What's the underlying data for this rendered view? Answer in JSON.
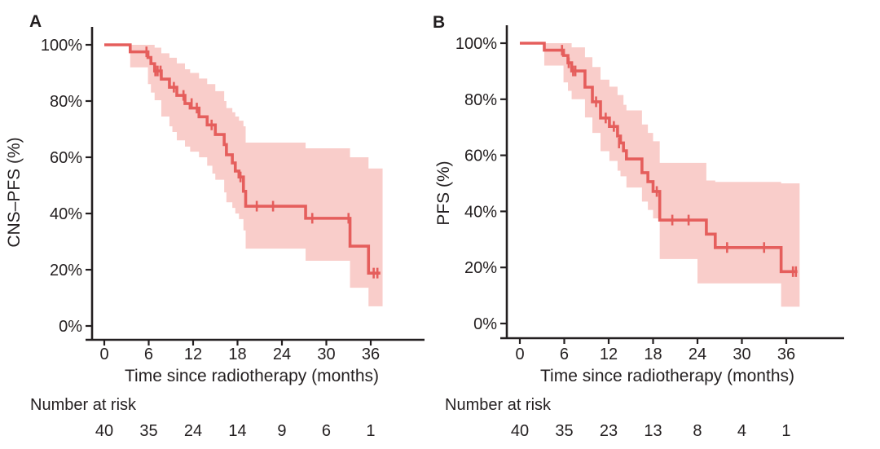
{
  "figure": {
    "background": "#ffffff",
    "curve_color": "#e55e5c",
    "ci_band_color": "#f9cdca",
    "axis_color": "#231f20",
    "text_color": "#231f20"
  },
  "chart_data": [
    {
      "type": "line",
      "subtype": "kaplan-meier-step",
      "panel_label": "A",
      "ylabel": "CNS–PFS (%)",
      "xlabel": "Time since radiotherapy (months)",
      "x_ticks": [
        0,
        6,
        12,
        18,
        24,
        30,
        36
      ],
      "y_ticks_percent": [
        0,
        20,
        40,
        60,
        80,
        100
      ],
      "y_tick_labels": [
        "0%",
        "20%",
        "40%",
        "60%",
        "80%",
        "100%"
      ],
      "xlim_months": [
        0,
        43
      ],
      "ylim_percent": [
        0,
        100
      ],
      "grid": false,
      "legend": "none",
      "series": [
        {
          "name": "CNS-PFS",
          "steps": [
            [
              0,
              100
            ],
            [
              3.5,
              97.5
            ],
            [
              5.9,
              95.5
            ],
            [
              6.3,
              93.3
            ],
            [
              6.8,
              90.7
            ],
            [
              7.7,
              87.8
            ],
            [
              8.8,
              84.9
            ],
            [
              9.8,
              82.0
            ],
            [
              10.9,
              79.1
            ],
            [
              11.6,
              77.5
            ],
            [
              12.8,
              74.4
            ],
            [
              13.9,
              71.5
            ],
            [
              15.0,
              68.1
            ],
            [
              16.2,
              64.5
            ],
            [
              16.5,
              60.9
            ],
            [
              17.3,
              58.0
            ],
            [
              17.7,
              55.1
            ],
            [
              18.2,
              53.0
            ],
            [
              18.8,
              47.9
            ],
            [
              19.1,
              42.6
            ],
            [
              27.2,
              38.3
            ],
            [
              33.2,
              28.4
            ],
            [
              35.7,
              18.8
            ]
          ],
          "end_time": 37.3,
          "censor_marks": [
            [
              5.7,
              97.5
            ],
            [
              6.9,
              90.7
            ],
            [
              7.2,
              90.7
            ],
            [
              7.6,
              90.7
            ],
            [
              9.4,
              84.9
            ],
            [
              10.7,
              82.0
            ],
            [
              11.8,
              79.1
            ],
            [
              12.5,
              77.5
            ],
            [
              14.5,
              71.5
            ],
            [
              18.4,
              53.0
            ],
            [
              20.6,
              42.6
            ],
            [
              22.8,
              42.6
            ],
            [
              28.1,
              38.3
            ],
            [
              33.0,
              38.3
            ],
            [
              36.4,
              18.8
            ],
            [
              36.9,
              18.8
            ]
          ],
          "ci_upper": [
            [
              0,
              100
            ],
            [
              3.5,
              100
            ],
            [
              5.9,
              100
            ],
            [
              6.3,
              100
            ],
            [
              6.8,
              99.0
            ],
            [
              7.7,
              97.0
            ],
            [
              8.8,
              95.4
            ],
            [
              9.8,
              93.4
            ],
            [
              10.9,
              91.3
            ],
            [
              11.6,
              90.0
            ],
            [
              12.8,
              88.0
            ],
            [
              13.9,
              86.0
            ],
            [
              15.0,
              83.5
            ],
            [
              16.2,
              80.0
            ],
            [
              16.5,
              77.5
            ],
            [
              17.3,
              76.0
            ],
            [
              17.7,
              74.5
            ],
            [
              18.2,
              73.0
            ],
            [
              18.8,
              71.0
            ],
            [
              19.1,
              65.2
            ],
            [
              27.2,
              63.2
            ],
            [
              33.2,
              60.0
            ],
            [
              35.7,
              56.0
            ]
          ],
          "ci_lower": [
            [
              0,
              100
            ],
            [
              3.5,
              92.0
            ],
            [
              5.9,
              86.0
            ],
            [
              6.3,
              83.0
            ],
            [
              6.8,
              80.3
            ],
            [
              7.7,
              74.5
            ],
            [
              8.8,
              71.0
            ],
            [
              9.2,
              69.0
            ],
            [
              9.8,
              66.0
            ],
            [
              10.9,
              63.8
            ],
            [
              11.6,
              62.0
            ],
            [
              12.8,
              60.0
            ],
            [
              13.9,
              57.0
            ],
            [
              14.6,
              54.2
            ],
            [
              15.0,
              52.0
            ],
            [
              16.2,
              47.5
            ],
            [
              16.5,
              44.0
            ],
            [
              17.3,
              42.0
            ],
            [
              17.7,
              40.0
            ],
            [
              18.2,
              38.0
            ],
            [
              18.8,
              34.0
            ],
            [
              19.1,
              27.5
            ],
            [
              27.2,
              23.2
            ],
            [
              33.2,
              13.6
            ],
            [
              35.7,
              7.0
            ]
          ],
          "ci_end_time": 37.6
        }
      ],
      "number_at_risk": {
        "label": "Number at risk",
        "times": [
          0,
          6,
          12,
          18,
          24,
          30,
          36
        ],
        "values": [
          40,
          35,
          24,
          14,
          9,
          6,
          1
        ]
      }
    },
    {
      "type": "line",
      "subtype": "kaplan-meier-step",
      "panel_label": "B",
      "ylabel": "PFS (%)",
      "xlabel": "Time since radiotherapy (months)",
      "x_ticks": [
        0,
        6,
        12,
        18,
        24,
        30,
        36
      ],
      "y_ticks_percent": [
        0,
        20,
        40,
        60,
        80,
        100
      ],
      "y_tick_labels": [
        "0%",
        "20%",
        "40%",
        "60%",
        "80%",
        "100%"
      ],
      "xlim_months": [
        0,
        43
      ],
      "ylim_percent": [
        0,
        100
      ],
      "grid": false,
      "legend": "none",
      "series": [
        {
          "name": "PFS",
          "steps": [
            [
              0,
              100
            ],
            [
              3.3,
              97.5
            ],
            [
              5.9,
              95.6
            ],
            [
              6.5,
              93.0
            ],
            [
              7.0,
              90.1
            ],
            [
              8.8,
              84.3
            ],
            [
              9.8,
              79.1
            ],
            [
              10.9,
              73.3
            ],
            [
              12.1,
              70.3
            ],
            [
              13.2,
              66.9
            ],
            [
              13.6,
              64.4
            ],
            [
              14.0,
              61.6
            ],
            [
              14.4,
              58.7
            ],
            [
              16.5,
              53.8
            ],
            [
              17.3,
              50.6
            ],
            [
              18.0,
              47.1
            ],
            [
              18.9,
              36.9
            ],
            [
              25.2,
              31.9
            ],
            [
              26.4,
              27.1
            ],
            [
              35.3,
              18.5
            ]
          ],
          "end_time": 37.5,
          "censor_marks": [
            [
              5.7,
              97.5
            ],
            [
              6.6,
              93.0
            ],
            [
              7.2,
              90.1
            ],
            [
              7.5,
              90.1
            ],
            [
              10.3,
              79.1
            ],
            [
              11.6,
              73.3
            ],
            [
              12.7,
              70.3
            ],
            [
              13.4,
              64.4
            ],
            [
              18.5,
              47.1
            ],
            [
              20.6,
              36.9
            ],
            [
              22.8,
              36.9
            ],
            [
              28.0,
              27.1
            ],
            [
              33.0,
              27.1
            ],
            [
              36.9,
              18.5
            ],
            [
              37.3,
              18.5
            ]
          ],
          "ci_upper": [
            [
              0,
              100
            ],
            [
              3.3,
              100
            ],
            [
              5.9,
              100
            ],
            [
              6.5,
              100
            ],
            [
              7.0,
              98.5
            ],
            [
              8.8,
              95.0
            ],
            [
              9.8,
              91.5
            ],
            [
              10.9,
              87.0
            ],
            [
              12.1,
              84.5
            ],
            [
              13.2,
              81.5
            ],
            [
              14.0,
              78.0
            ],
            [
              14.4,
              76.0
            ],
            [
              16.5,
              71.0
            ],
            [
              17.3,
              68.0
            ],
            [
              18.0,
              65.0
            ],
            [
              18.9,
              57.3
            ],
            [
              25.2,
              51.0
            ],
            [
              26.4,
              50.5
            ],
            [
              35.3,
              50.0
            ]
          ],
          "ci_lower": [
            [
              0,
              100
            ],
            [
              3.3,
              92.0
            ],
            [
              5.9,
              86.0
            ],
            [
              6.5,
              83.0
            ],
            [
              7.0,
              80.0
            ],
            [
              8.8,
              73.5
            ],
            [
              9.8,
              68.0
            ],
            [
              10.9,
              61.5
            ],
            [
              12.1,
              58.0
            ],
            [
              13.2,
              54.5
            ],
            [
              13.6,
              52.5
            ],
            [
              14.4,
              48.5
            ],
            [
              16.5,
              43.5
            ],
            [
              17.3,
              40.5
            ],
            [
              18.0,
              37.5
            ],
            [
              18.9,
              23.0
            ],
            [
              24.0,
              14.3
            ],
            [
              26.4,
              14.3
            ],
            [
              35.3,
              6.0
            ]
          ],
          "ci_end_time": 37.8
        }
      ],
      "number_at_risk": {
        "label": "Number at risk",
        "times": [
          0,
          6,
          12,
          18,
          24,
          30,
          36
        ],
        "values": [
          40,
          35,
          23,
          13,
          8,
          4,
          1
        ]
      }
    }
  ]
}
